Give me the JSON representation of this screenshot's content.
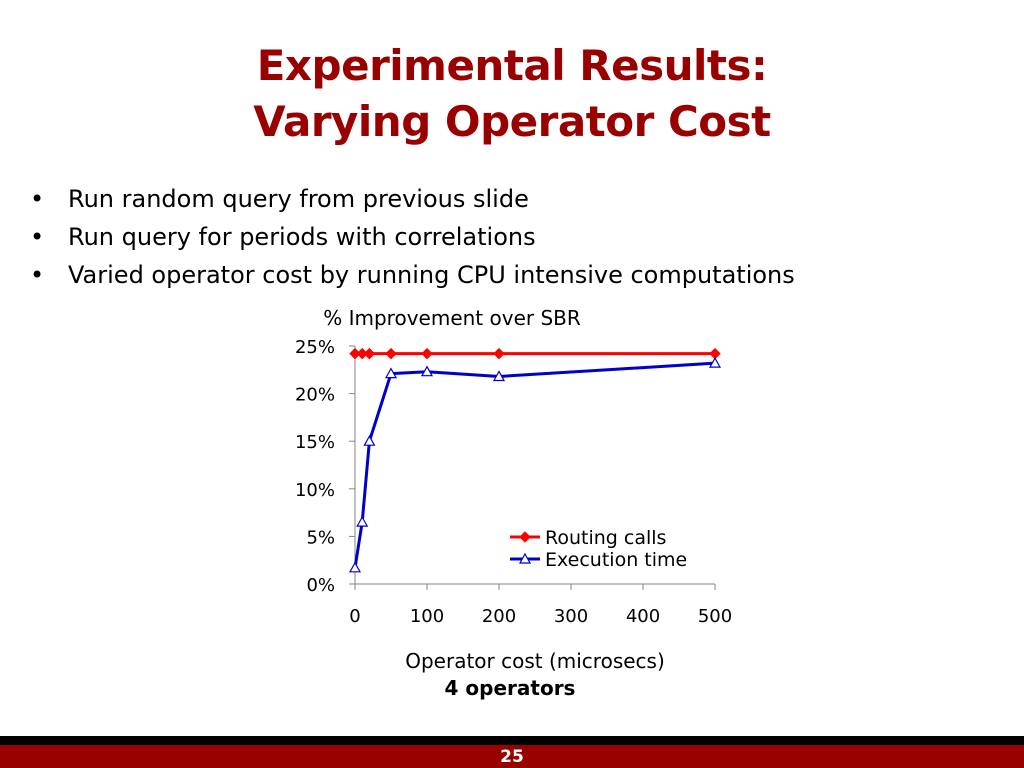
{
  "slide": {
    "title_line1": "Experimental Results:",
    "title_line2": "Varying Operator Cost",
    "bullets": [
      "Run random query from previous slide",
      "Run query for periods with correlations",
      "Varied operator cost by running CPU intensive computations"
    ],
    "caption": "4 operators",
    "page_number": "25",
    "colors": {
      "title": "#990000",
      "footer_bar": "#990000",
      "footer_rule": "#000000"
    }
  },
  "chart_data": {
    "type": "line",
    "title": "% Improvement over SBR",
    "xlabel": "Operator cost (microsecs)",
    "ylabel": "",
    "xlim": [
      0,
      500
    ],
    "ylim": [
      0,
      25
    ],
    "x_ticks": [
      0,
      100,
      200,
      300,
      400,
      500
    ],
    "y_ticks": [
      0,
      5,
      10,
      15,
      20,
      25
    ],
    "y_tick_labels": [
      "0%",
      "5%",
      "10%",
      "15%",
      "20%",
      "25%"
    ],
    "grid": false,
    "legend_position": "bottom-right",
    "series": [
      {
        "name": "Routing calls",
        "color": "#ff0000",
        "marker": "diamond",
        "x": [
          0,
          10,
          20,
          50,
          100,
          200,
          500
        ],
        "y": [
          24.2,
          24.2,
          24.2,
          24.2,
          24.2,
          24.2,
          24.2
        ]
      },
      {
        "name": "Execution time",
        "color": "#0000cc",
        "marker": "triangle",
        "x": [
          0,
          10,
          20,
          50,
          100,
          200,
          500
        ],
        "y": [
          1.7,
          6.5,
          15.0,
          22.1,
          22.3,
          21.8,
          23.2
        ]
      }
    ]
  }
}
